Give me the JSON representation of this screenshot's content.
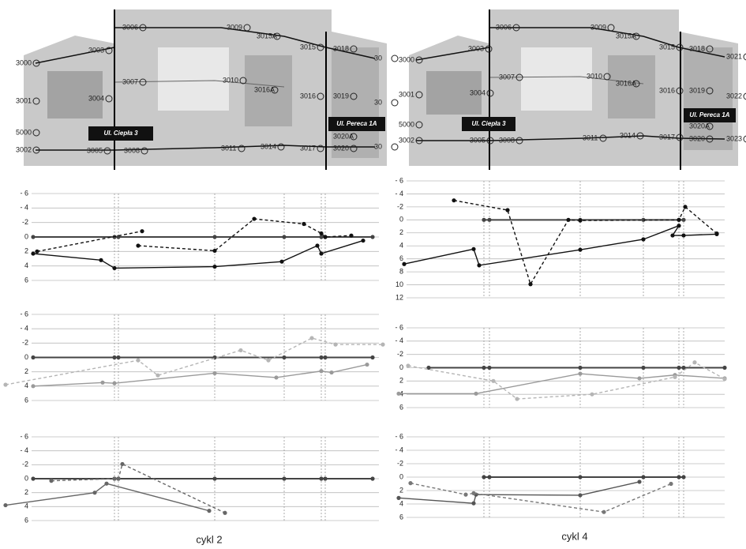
{
  "photos": [
    {
      "labels": [
        "3000",
        "3001",
        "5000",
        "3002",
        "3003",
        "3004",
        "3005",
        "3006",
        "3007",
        "3008",
        "3009",
        "3010",
        "3011",
        "3014",
        "3015A",
        "3015",
        "3016A",
        "3016",
        "3017",
        "3018",
        "3019",
        "3020",
        "3020A",
        "30",
        "30",
        "30"
      ],
      "streets": [
        "Ul. Ciepła 3",
        "Ul. Pereca 1A"
      ]
    },
    {
      "labels": [
        "3000",
        "3001",
        "5000",
        "3002",
        "3003",
        "3004",
        "3005",
        "3006",
        "3007",
        "3008",
        "3009",
        "3010",
        "3011",
        "3014",
        "3015A",
        "3015",
        "3016A",
        "3016",
        "3017",
        "3018",
        "3019",
        "3020",
        "3020A",
        "3021",
        "3022",
        "3023"
      ],
      "streets": [
        "Ul. Ciepła 3",
        "Ul. Pereca 1A"
      ]
    }
  ],
  "captions": [
    "cykl 2",
    "cykl 4"
  ],
  "chart_data": [
    {
      "type": "line",
      "xlim": [
        -35,
        445
      ],
      "ylim": [
        -6,
        6
      ],
      "y_inverted": true,
      "yticks": [
        {
          "value": -6,
          "label": "- 6"
        },
        {
          "value": -4,
          "label": "- 4"
        },
        -2,
        0,
        2,
        4,
        6
      ],
      "grid": true,
      "vlines": [
        103,
        108,
        230,
        318,
        365,
        370
      ],
      "series": [
        {
          "color": "#444444",
          "dashed": false,
          "x": [
            0,
            103,
            108,
            230,
            318,
            365,
            370,
            430
          ],
          "values": [
            0,
            0,
            0,
            0,
            0,
            0,
            0,
            0
          ]
        },
        {
          "color": "#111111",
          "dashed": false,
          "x": [
            0,
            86,
            103,
            230,
            315,
            360,
            365,
            418
          ],
          "values": [
            2.3,
            3.2,
            4.3,
            4.1,
            3.4,
            1.2,
            2.3,
            0.5
          ]
        },
        {
          "color": "#111111",
          "dashed": true,
          "x": [
            5,
            138,
            null,
            133,
            230,
            280,
            343,
            365,
            370,
            403
          ],
          "values": [
            2.0,
            -0.8,
            null,
            1.2,
            1.9,
            -2.5,
            -1.8,
            -0.5,
            0,
            -0.2
          ]
        }
      ]
    },
    {
      "type": "line",
      "xlim": [
        -35,
        445
      ],
      "ylim": [
        -6,
        6
      ],
      "y_inverted": true,
      "yticks": [
        {
          "value": -6,
          "label": "- 6"
        },
        {
          "value": -4,
          "label": "- 4"
        },
        -2,
        0,
        2,
        4,
        6
      ],
      "grid": true,
      "vlines": [
        103,
        108,
        230,
        318,
        365,
        370
      ],
      "series": [
        {
          "color": "#444444",
          "dashed": false,
          "x": [
            0,
            103,
            108,
            230,
            318,
            365,
            370,
            430
          ],
          "values": [
            0,
            0,
            0,
            0,
            0,
            0,
            0,
            0
          ]
        },
        {
          "color": "#9a9a9a",
          "dashed": false,
          "x": [
            0,
            88,
            103,
            230,
            308,
            365,
            378,
            423
          ],
          "values": [
            4,
            3.5,
            3.6,
            2.2,
            2.8,
            1.9,
            2.1,
            1.0
          ]
        },
        {
          "color": "#b5b5b5",
          "dashed": true,
          "x": [
            -35,
            133,
            158,
            263,
            298,
            353,
            383,
            443
          ],
          "values": [
            3.8,
            0.4,
            2.5,
            -1,
            0.4,
            -2.7,
            -1.8,
            -1.8
          ]
        }
      ]
    },
    {
      "type": "line",
      "xlim": [
        -35,
        445
      ],
      "ylim": [
        -6,
        6
      ],
      "y_inverted": true,
      "yticks": [
        {
          "value": -6,
          "label": "- 6"
        },
        {
          "value": -4,
          "label": "- 4"
        },
        -2,
        0,
        2,
        4,
        6
      ],
      "grid": true,
      "vlines": [
        103,
        108,
        230,
        318,
        365,
        370
      ],
      "series": [
        {
          "color": "#444444",
          "dashed": false,
          "x": [
            0,
            103,
            108,
            230,
            318,
            365,
            370,
            430
          ],
          "values": [
            0,
            0,
            0,
            0,
            0,
            0,
            0,
            0
          ]
        },
        {
          "color": "#666666",
          "dashed": false,
          "x": [
            -35,
            78,
            93,
            223
          ],
          "values": [
            3.8,
            2.0,
            0.7,
            4.6
          ]
        },
        {
          "color": "#666666",
          "dashed": true,
          "x": [
            23,
            103,
            108,
            113,
            243
          ],
          "values": [
            0.3,
            0,
            0,
            -2.1,
            4.9
          ]
        }
      ]
    },
    {
      "type": "line",
      "xlim": [
        0,
        420
      ],
      "ylim": [
        -6,
        12
      ],
      "y_inverted": true,
      "yticks": [
        {
          "value": -6,
          "label": "- 6"
        },
        {
          "value": -4,
          "label": "- 4"
        },
        -2,
        0,
        2,
        4,
        6,
        8,
        10,
        12
      ],
      "grid": true,
      "vlines": [
        108,
        115,
        230,
        310,
        355,
        361
      ],
      "series": [
        {
          "color": "#444444",
          "dashed": false,
          "x": [
            108,
            115,
            230,
            310,
            355,
            361
          ],
          "values": [
            0,
            0,
            0,
            0,
            0,
            0
          ]
        },
        {
          "color": "#111111",
          "dashed": false,
          "x": [
            7,
            95,
            102,
            230,
            310,
            355,
            347,
            361,
            403
          ],
          "values": [
            6.8,
            4.5,
            7.0,
            4.6,
            3.0,
            0.9,
            2.4,
            2.4,
            2.2
          ]
        },
        {
          "color": "#111111",
          "dashed": true,
          "x": [
            70,
            138,
            167,
            215,
            230,
            355,
            363,
            403
          ],
          "values": [
            -3,
            -1.5,
            9.9,
            0,
            0.1,
            0,
            -2,
            2.1
          ]
        }
      ]
    },
    {
      "type": "line",
      "xlim": [
        0,
        420
      ],
      "ylim": [
        -6,
        6
      ],
      "y_inverted": true,
      "yticks": [
        {
          "value": -6,
          "label": "- 6"
        },
        {
          "value": -4,
          "label": "- 4"
        },
        -2,
        0,
        2,
        4,
        6
      ],
      "grid": true,
      "vlines": [
        108,
        115,
        230,
        310,
        355,
        361
      ],
      "series": [
        {
          "color": "#444444",
          "dashed": false,
          "x": [
            38,
            108,
            115,
            230,
            310,
            355,
            361,
            413
          ],
          "values": [
            0,
            0,
            0,
            0,
            0,
            0,
            0,
            0
          ]
        },
        {
          "color": "#9a9a9a",
          "dashed": false,
          "x": [
            0,
            98,
            230,
            305,
            350,
            413
          ],
          "values": [
            3.9,
            3.9,
            0.9,
            1.6,
            1.1,
            1.6
          ]
        },
        {
          "color": "#b5b5b5",
          "dashed": true,
          "x": [
            12,
            120,
            150,
            245,
            350,
            375,
            413
          ],
          "values": [
            -0.3,
            2,
            4.7,
            4.0,
            1.4,
            -0.8,
            1.7
          ]
        }
      ]
    },
    {
      "type": "line",
      "xlim": [
        0,
        420
      ],
      "ylim": [
        -6,
        6
      ],
      "y_inverted": true,
      "yticks": [
        {
          "value": -6,
          "label": "- 6"
        },
        {
          "value": -4,
          "label": "- 4"
        },
        -2,
        0,
        2,
        4,
        6
      ],
      "grid": true,
      "vlines": [
        108,
        115,
        230,
        310,
        355,
        361
      ],
      "series": [
        {
          "color": "#444444",
          "dashed": false,
          "x": [
            108,
            115,
            230,
            310,
            355,
            361
          ],
          "values": [
            0,
            0,
            0,
            0,
            0,
            0
          ]
        },
        {
          "color": "#555555",
          "dashed": false,
          "x": [
            0,
            95,
            98,
            230,
            305
          ],
          "values": [
            3.1,
            3.9,
            2.6,
            2.7,
            0.7
          ]
        },
        {
          "color": "#777777",
          "dashed": true,
          "x": [
            15,
            85,
            95,
            260,
            345
          ],
          "values": [
            0.9,
            2.6,
            2.4,
            5.2,
            1.0
          ]
        }
      ]
    }
  ]
}
